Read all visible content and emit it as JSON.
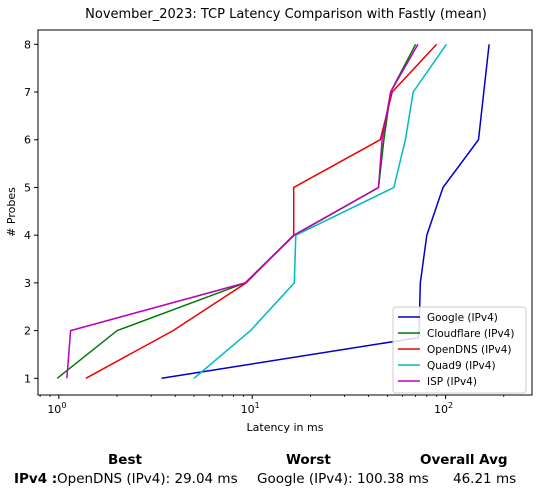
{
  "chart_data": {
    "type": "line",
    "title": "November_2023: TCP Latency Comparison with Fastly (mean)",
    "xlabel": "Latency in ms",
    "ylabel": "# Probes",
    "xscale": "log",
    "xlim": [
      0.78,
      280
    ],
    "ylim": [
      0.65,
      8.3
    ],
    "x_ticks": [
      {
        "value": 1,
        "base": "10",
        "exp": "0"
      },
      {
        "value": 10,
        "base": "10",
        "exp": "1"
      },
      {
        "value": 100,
        "base": "10",
        "exp": "2"
      }
    ],
    "y_ticks": [
      "1",
      "2",
      "3",
      "4",
      "5",
      "6",
      "7",
      "8"
    ],
    "grid": false,
    "legend_position": "lower-right",
    "series": [
      {
        "name": "Google (IPv4)",
        "color": "#0000cc",
        "points": [
          [
            3.4,
            1
          ],
          [
            72,
            1.85
          ],
          [
            73,
            2
          ],
          [
            74,
            3
          ],
          [
            80,
            4
          ],
          [
            97,
            5
          ],
          [
            148,
            6
          ],
          [
            168,
            8
          ]
        ]
      },
      {
        "name": "Cloudflare (IPv4)",
        "color": "#007700",
        "points": [
          [
            0.98,
            1
          ],
          [
            2.0,
            2
          ],
          [
            9.2,
            3
          ],
          [
            16.5,
            4
          ],
          [
            45,
            5
          ],
          [
            48,
            6
          ],
          [
            52,
            7
          ],
          [
            70,
            8
          ]
        ]
      },
      {
        "name": "OpenDNS (IPv4)",
        "color": "#ee0000",
        "points": [
          [
            1.38,
            1
          ],
          [
            3.9,
            2
          ],
          [
            9.3,
            3
          ],
          [
            16.4,
            4
          ],
          [
            16.4,
            5
          ],
          [
            46,
            6
          ],
          [
            53,
            7
          ],
          [
            90,
            8
          ]
        ]
      },
      {
        "name": "Quad9 (IPv4)",
        "color": "#00bbbb",
        "points": [
          [
            5.0,
            1
          ],
          [
            9.8,
            2
          ],
          [
            16.5,
            3
          ],
          [
            16.8,
            4
          ],
          [
            54,
            5
          ],
          [
            62,
            6
          ],
          [
            68,
            7
          ],
          [
            101,
            8
          ]
        ]
      },
      {
        "name": "ISP (IPv4)",
        "color": "#bb00bb",
        "points": [
          [
            1.1,
            1
          ],
          [
            1.15,
            2
          ],
          [
            9.2,
            3
          ],
          [
            16.4,
            4
          ],
          [
            45,
            5
          ],
          [
            47,
            6
          ],
          [
            52,
            7
          ],
          [
            72,
            8
          ]
        ]
      }
    ]
  },
  "summary": {
    "best_header": "Best",
    "worst_header": "Worst",
    "avg_header": "Overall Avg",
    "row_label": "IPv4 :",
    "best_value": "OpenDNS (IPv4): 29.04 ms",
    "worst_value": "Google (IPv4): 100.38 ms",
    "avg_value": "46.21 ms"
  }
}
